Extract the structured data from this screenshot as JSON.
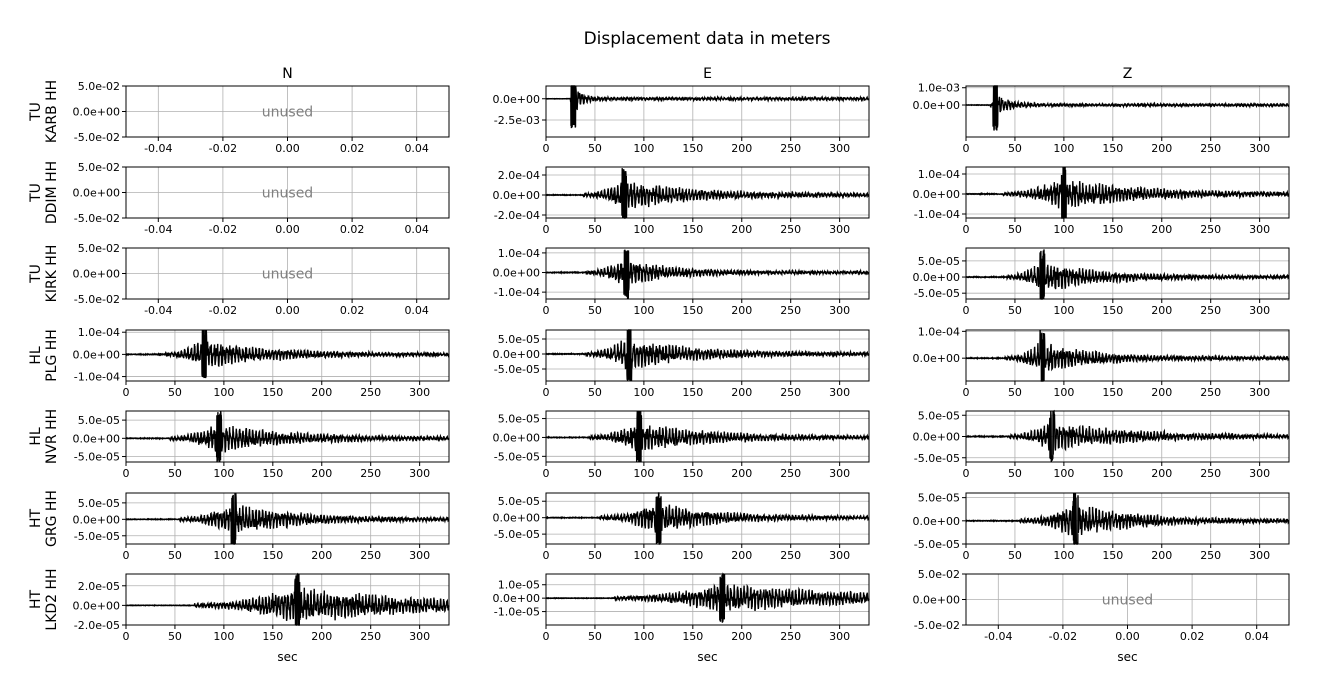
{
  "title": "Displacement data in meters",
  "xlabel": "sec",
  "unused_label": "unused",
  "colors": {
    "trace": "#000000",
    "grid": "#b0b0b0",
    "unused_text": "#808080"
  },
  "chart_data": {
    "type": "line",
    "title": "Displacement data in meters",
    "grid": true,
    "columns": [
      "N",
      "E",
      "Z"
    ],
    "rows": [
      {
        "net": "TU",
        "sta": "KARB HH"
      },
      {
        "net": "TU",
        "sta": "DDIM HH"
      },
      {
        "net": "TU",
        "sta": "KIRK HH"
      },
      {
        "net": "HL",
        "sta": "PLG HH"
      },
      {
        "net": "HL",
        "sta": "NVR HH"
      },
      {
        "net": "HT",
        "sta": "GRG HH"
      },
      {
        "net": "HT",
        "sta": "LKD2 HH"
      }
    ],
    "time_axis": {
      "ticks": [
        0,
        50,
        100,
        150,
        200,
        250,
        300
      ],
      "xlim": [
        0,
        330
      ]
    },
    "unused_axis": {
      "xticks": [
        "-0.04",
        "-0.02",
        "0.00",
        "0.02",
        "0.04"
      ],
      "xlim": [
        -0.05,
        0.05
      ],
      "yticks": [
        "5.0e-02",
        "0.0e+00",
        "-5.0e-02"
      ],
      "ylim": [
        -0.05,
        0.05
      ]
    },
    "panels": [
      {
        "row": 0,
        "col": 0,
        "unused": true
      },
      {
        "row": 0,
        "col": 1,
        "ylim": [
          -0.0045,
          0.0015
        ],
        "yticks": [
          0.0,
          -0.0025
        ],
        "ytick_labels": [
          "0.0e+00",
          "-2.5e-03"
        ],
        "onset": 25,
        "peak": 28,
        "amp": 0.0032,
        "noise": 3e-05,
        "decay": 8
      },
      {
        "row": 0,
        "col": 2,
        "ylim": [
          -0.00185,
          0.0011
        ],
        "yticks": [
          0.001,
          0.0
        ],
        "ytick_labels": [
          "1.0e-03",
          "0.0e+00"
        ],
        "onset": 25,
        "peak": 30,
        "amp": 0.0014,
        "noise": 2e-05,
        "decay": 12
      },
      {
        "row": 1,
        "col": 0,
        "unused": true
      },
      {
        "row": 1,
        "col": 1,
        "ylim": [
          -0.00023,
          0.00028
        ],
        "yticks": [
          0.0002,
          0.0,
          -0.0002
        ],
        "ytick_labels": [
          "2.0e-04",
          "0.0e+00",
          "-2.0e-04"
        ],
        "onset": 38,
        "peak": 80,
        "amp": 0.00026,
        "noise": 5e-06,
        "decay": 70
      },
      {
        "row": 1,
        "col": 2,
        "ylim": [
          -0.00012,
          0.000135
        ],
        "yticks": [
          0.0001,
          0.0,
          -0.0001
        ],
        "ytick_labels": [
          "1.0e-04",
          "0.0e+00",
          "-1.0e-04"
        ],
        "onset": 38,
        "peak": 100,
        "amp": 0.00013,
        "noise": 3e-06,
        "decay": 80
      },
      {
        "row": 2,
        "col": 0,
        "unused": true
      },
      {
        "row": 2,
        "col": 1,
        "ylim": [
          -0.000135,
          0.000125
        ],
        "yticks": [
          0.0001,
          0.0,
          -0.0001
        ],
        "ytick_labels": [
          "1.0e-04",
          "0.0e+00",
          "-1.0e-04"
        ],
        "onset": 40,
        "peak": 82,
        "amp": 0.00013,
        "noise": 3e-06,
        "decay": 45
      },
      {
        "row": 2,
        "col": 2,
        "ylim": [
          -6.8e-05,
          9e-05
        ],
        "yticks": [
          5e-05,
          0.0,
          -5e-05
        ],
        "ytick_labels": [
          "5.0e-05",
          "0.0e+00",
          "-5.0e-05"
        ],
        "onset": 42,
        "peak": 78,
        "amp": 8e-05,
        "noise": 2e-06,
        "decay": 60
      },
      {
        "row": 3,
        "col": 0,
        "ylim": [
          -0.00012,
          0.00011
        ],
        "yticks": [
          0.0001,
          0.0,
          -0.0001
        ],
        "ytick_labels": [
          "1.0e-04",
          "0.0e+00",
          "-1.0e-04"
        ],
        "onset": 40,
        "peak": 80,
        "amp": 0.00011,
        "noise": 3e-06,
        "decay": 70
      },
      {
        "row": 3,
        "col": 1,
        "ylim": [
          -9e-05,
          8e-05
        ],
        "yticks": [
          5e-05,
          0.0,
          -5e-05
        ],
        "ytick_labels": [
          "5.0e-05",
          "0.0e+00",
          "-5.0e-05"
        ],
        "onset": 40,
        "peak": 85,
        "amp": 9e-05,
        "noise": 2e-06,
        "decay": 65
      },
      {
        "row": 3,
        "col": 2,
        "ylim": [
          -8.5e-05,
          0.000105
        ],
        "yticks": [
          0.0001,
          0.0
        ],
        "ytick_labels": [
          "1.0e-04",
          "0.0e+00"
        ],
        "onset": 40,
        "peak": 78,
        "amp": 0.0001,
        "noise": 2e-06,
        "decay": 55
      },
      {
        "row": 4,
        "col": 0,
        "ylim": [
          -6.5e-05,
          7.5e-05
        ],
        "yticks": [
          5e-05,
          0.0,
          -5e-05
        ],
        "ytick_labels": [
          "5.0e-05",
          "0.0e+00",
          "-5.0e-05"
        ],
        "onset": 45,
        "peak": 95,
        "amp": 7e-05,
        "noise": 1.5e-06,
        "decay": 75
      },
      {
        "row": 4,
        "col": 1,
        "ylim": [
          -6.5e-05,
          7e-05
        ],
        "yticks": [
          5e-05,
          0.0,
          -5e-05
        ],
        "ytick_labels": [
          "5.0e-05",
          "0.0e+00",
          "-5.0e-05"
        ],
        "onset": 45,
        "peak": 95,
        "amp": 7e-05,
        "noise": 1.5e-06,
        "decay": 70
      },
      {
        "row": 4,
        "col": 2,
        "ylim": [
          -6e-05,
          6e-05
        ],
        "yticks": [
          5e-05,
          0.0,
          -5e-05
        ],
        "ytick_labels": [
          "5.0e-05",
          "0.0e+00",
          "-5.0e-05"
        ],
        "onset": 45,
        "peak": 88,
        "amp": 6e-05,
        "noise": 1.5e-06,
        "decay": 80
      },
      {
        "row": 5,
        "col": 0,
        "ylim": [
          -7.5e-05,
          8e-05
        ],
        "yticks": [
          5e-05,
          0.0,
          -5e-05
        ],
        "ytick_labels": [
          "5.0e-05",
          "0.0e+00",
          "-5.0e-05"
        ],
        "onset": 55,
        "peak": 110,
        "amp": 8e-05,
        "noise": 1.5e-06,
        "decay": 65
      },
      {
        "row": 5,
        "col": 1,
        "ylim": [
          -8e-05,
          7.5e-05
        ],
        "yticks": [
          5e-05,
          0.0,
          -5e-05
        ],
        "ytick_labels": [
          "5.0e-05",
          "0.0e+00",
          "-5.0e-05"
        ],
        "onset": 55,
        "peak": 115,
        "amp": 8e-05,
        "noise": 1.5e-06,
        "decay": 60
      },
      {
        "row": 5,
        "col": 2,
        "ylim": [
          -5e-05,
          6e-05
        ],
        "yticks": [
          5e-05,
          0.0,
          -5e-05
        ],
        "ytick_labels": [
          "5.0e-05",
          "0.0e+00",
          "-5.0e-05"
        ],
        "onset": 55,
        "peak": 112,
        "amp": 6e-05,
        "noise": 1.2e-06,
        "decay": 65
      },
      {
        "row": 6,
        "col": 0,
        "ylim": [
          -2e-05,
          3.2e-05
        ],
        "yticks": [
          2e-05,
          0.0,
          -2e-05
        ],
        "ytick_labels": [
          "2.0e-05",
          "0.0e+00",
          "-2.0e-05"
        ],
        "onset": 70,
        "peak": 175,
        "amp": 3e-05,
        "noise": 4e-07,
        "decay": 140
      },
      {
        "row": 6,
        "col": 1,
        "ylim": [
          -2e-05,
          1.8e-05
        ],
        "yticks": [
          1e-05,
          0.0,
          -1e-05
        ],
        "ytick_labels": [
          "1.0e-05",
          "0.0e+00",
          "-1.0e-05"
        ],
        "onset": 70,
        "peak": 180,
        "amp": 1.8e-05,
        "noise": 3e-07,
        "decay": 150
      },
      {
        "row": 6,
        "col": 2,
        "unused": true
      }
    ]
  }
}
